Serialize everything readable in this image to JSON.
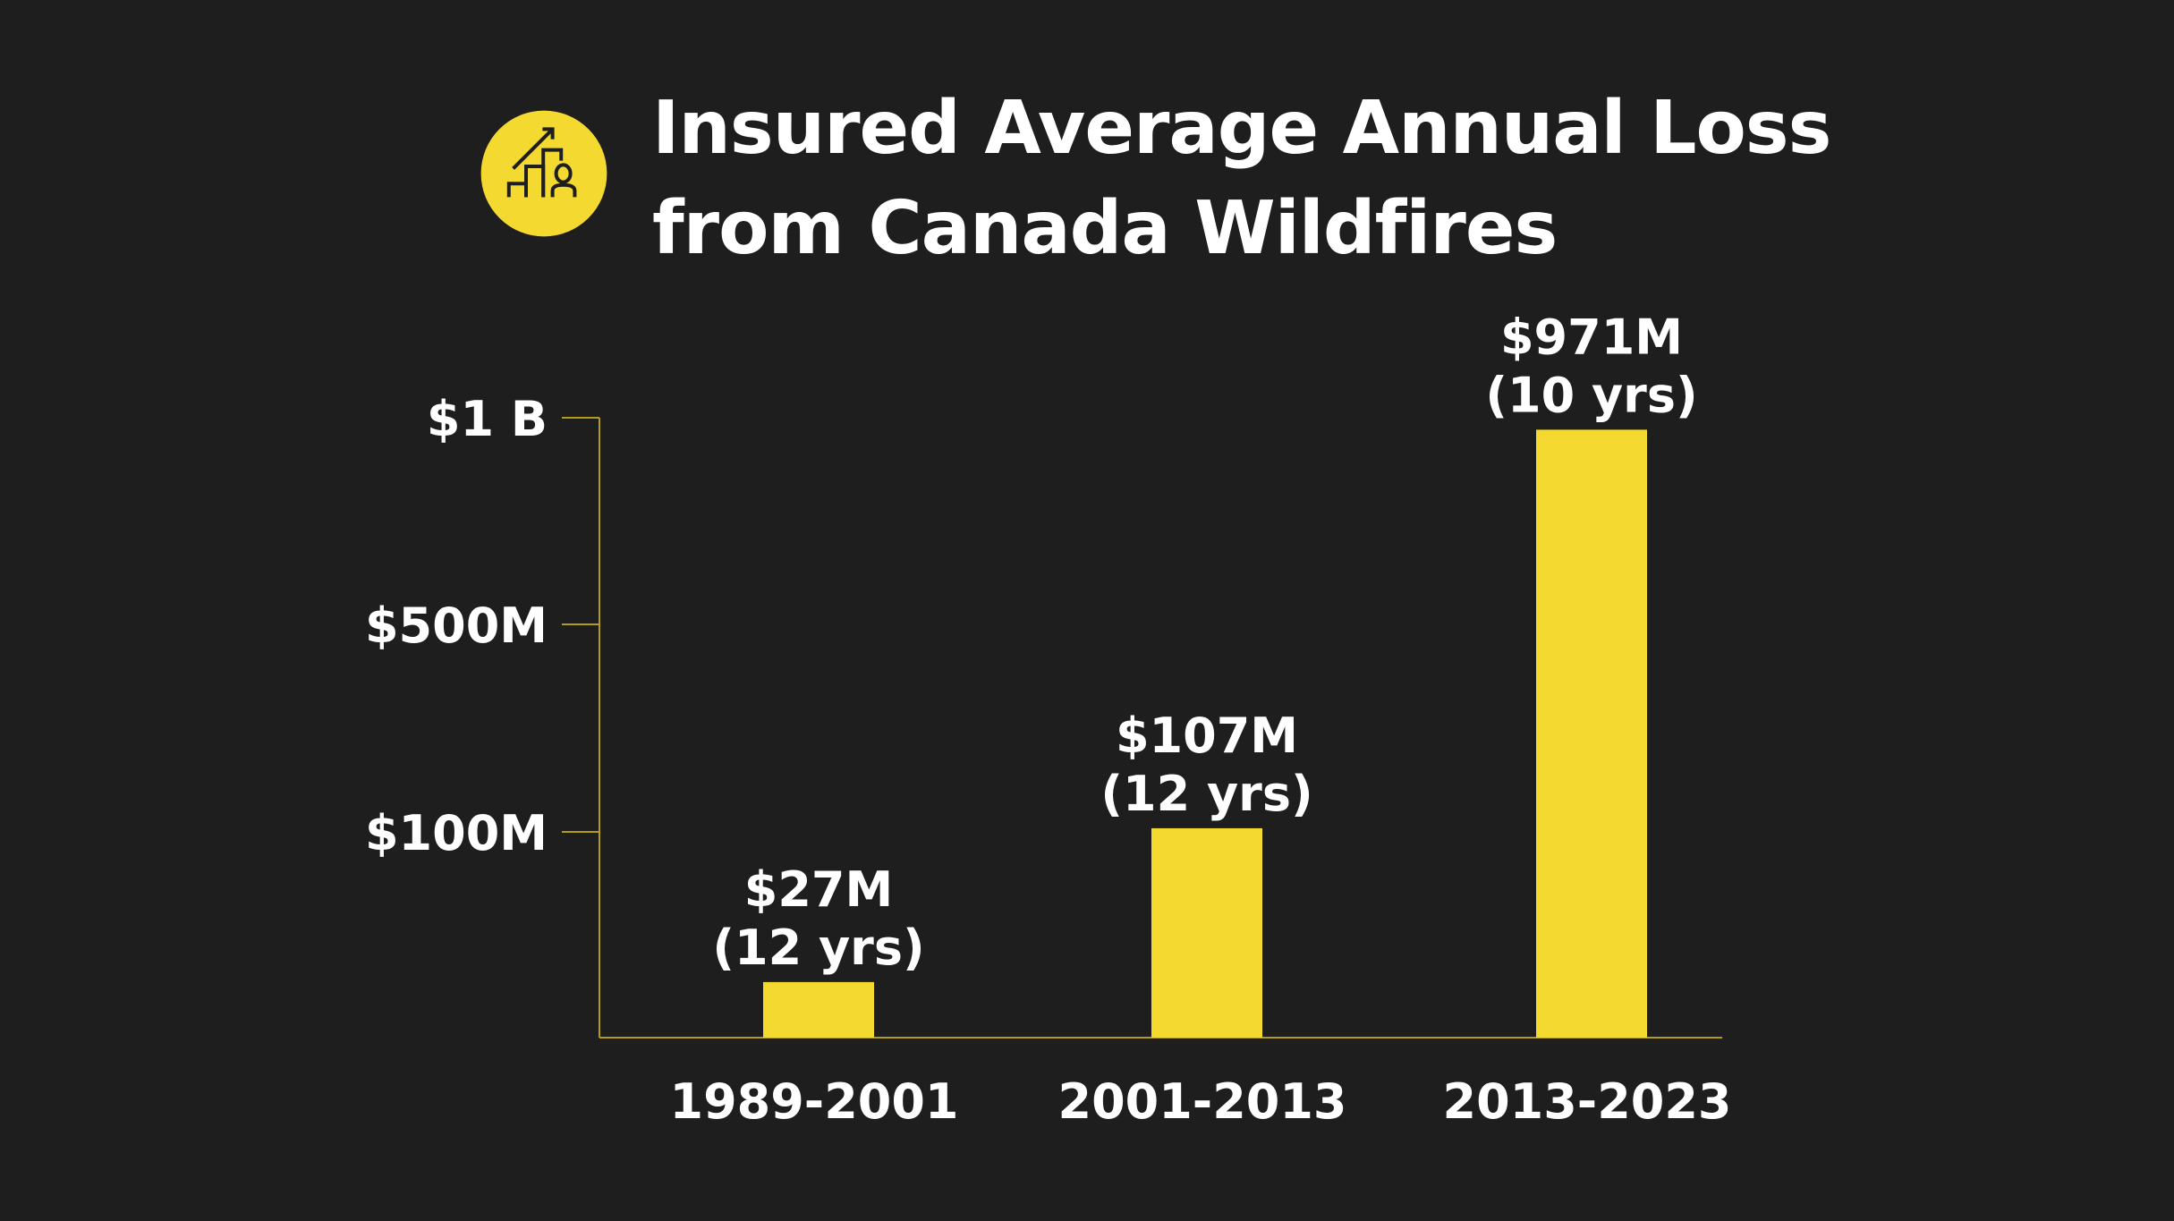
{
  "header": {
    "icon": "growth-chart-person-icon",
    "title_line1": "Insured Average Annual Loss",
    "title_line2": "from Canada Wildfires"
  },
  "colors": {
    "background": "#1e1e1e",
    "accent": "#f4d930",
    "axis": "#b39b1c",
    "text": "#ffffff"
  },
  "chart_data": {
    "type": "bar",
    "title": "Insured Average Annual Loss from Canada Wildfires",
    "categories": [
      "1989-2001",
      "2001-2013",
      "2013-2023"
    ],
    "values": [
      27,
      107,
      971
    ],
    "unit": "$M",
    "data_labels": [
      "$27M",
      "$107M",
      "$971M"
    ],
    "period_labels": [
      "(12 yrs)",
      "(12 yrs)",
      "(10 yrs)"
    ],
    "yticks": [
      {
        "value": 100,
        "label": "$100M"
      },
      {
        "value": 500,
        "label": "$500M"
      },
      {
        "value": 1000,
        "label": "$1 B"
      }
    ],
    "ylim": [
      0,
      1000
    ],
    "scale": "non-linear (piecewise between ticks)",
    "grid": false,
    "legend": "none"
  }
}
